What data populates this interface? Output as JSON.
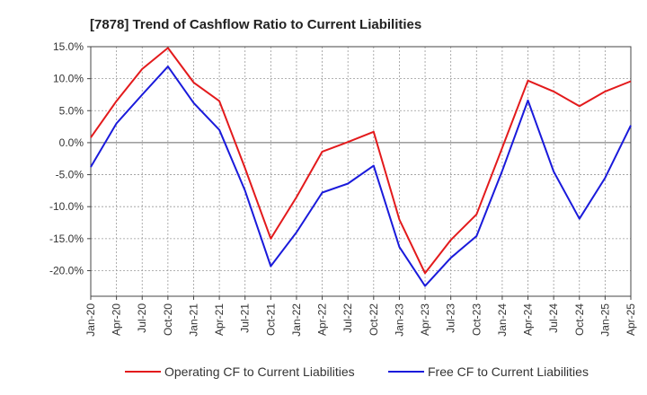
{
  "chart_data": {
    "type": "line",
    "title": "[7878]  Trend of Cashflow Ratio to Current Liabilities",
    "x": [
      "Jan-20",
      "Apr-20",
      "Jul-20",
      "Oct-20",
      "Jan-21",
      "Apr-21",
      "Jul-21",
      "Oct-21",
      "Jan-22",
      "Apr-22",
      "Jul-22",
      "Oct-22",
      "Jan-23",
      "Apr-23",
      "Jul-23",
      "Oct-23",
      "Jan-24",
      "Apr-24",
      "Jul-24",
      "Oct-24",
      "Jan-25",
      "Apr-25"
    ],
    "ylim": [
      -24,
      15
    ],
    "yticks": [
      15,
      10,
      5,
      0,
      -5,
      -10,
      -15,
      -20
    ],
    "ytick_labels": [
      "15.0%",
      "10.0%",
      "5.0%",
      "0.0%",
      "-5.0%",
      "-10.0%",
      "-15.0%",
      "-20.0%"
    ],
    "grid": true,
    "legend_position": "bottom",
    "series": [
      {
        "name": "Operating CF to Current Liabilities",
        "color": "#e31a1c",
        "values": [
          0.8,
          6.5,
          11.5,
          14.8,
          9.4,
          6.5,
          -4.0,
          -15.0,
          -8.5,
          -1.4,
          0.1,
          1.7,
          -12.0,
          -20.4,
          -15.2,
          -11.2,
          -0.8,
          9.7,
          8.0,
          5.7,
          8.0,
          9.6
        ]
      },
      {
        "name": "Free CF to Current Liabilities",
        "color": "#1a1adb",
        "values": [
          -3.8,
          3.0,
          7.5,
          11.9,
          6.2,
          2.0,
          -7.5,
          -19.3,
          -14.0,
          -7.8,
          -6.4,
          -3.6,
          -16.3,
          -22.4,
          -18.0,
          -14.6,
          -4.4,
          6.6,
          -4.5,
          -11.9,
          -5.5,
          2.7
        ]
      }
    ]
  }
}
